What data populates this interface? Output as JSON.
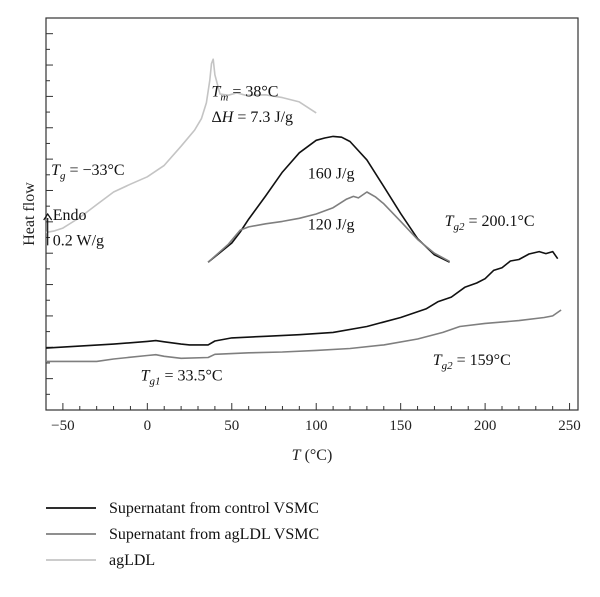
{
  "chart_data": {
    "type": "line",
    "title": "",
    "xlabel": "T (°C)",
    "ylabel": "Heat flow",
    "xlim": [
      -60,
      255
    ],
    "ylim": [
      0,
      100
    ],
    "x_ticks": [
      -50,
      0,
      50,
      100,
      150,
      200,
      250
    ],
    "grid": false,
    "legend_position": "bottom-left-outside",
    "series": [
      {
        "name": "Supernatant from control VSMC",
        "color": "#111111",
        "points": [
          [
            -60,
            15.8
          ],
          [
            -40,
            16.3
          ],
          [
            -20,
            16.8
          ],
          [
            0,
            17.5
          ],
          [
            5,
            17.7
          ],
          [
            10,
            17.4
          ],
          [
            20,
            16.8
          ],
          [
            25,
            16.6
          ],
          [
            36,
            16.6
          ],
          [
            40,
            17.6
          ],
          [
            50,
            18.4
          ],
          [
            70,
            18.8
          ],
          [
            90,
            19.2
          ],
          [
            110,
            19.8
          ],
          [
            130,
            21.3
          ],
          [
            150,
            23.6
          ],
          [
            165,
            25.8
          ],
          [
            172,
            27.6
          ],
          [
            180,
            28.8
          ],
          [
            188,
            31.3
          ],
          [
            195,
            32.4
          ],
          [
            200,
            33.5
          ],
          [
            205,
            35.6
          ],
          [
            210,
            36.3
          ],
          [
            215,
            38.0
          ],
          [
            220,
            38.4
          ],
          [
            226,
            39.8
          ],
          [
            232,
            40.4
          ],
          [
            236,
            39.9
          ],
          [
            240,
            40.4
          ],
          [
            243,
            38.6
          ]
        ]
      },
      {
        "name": "Supernatant from agLDL VSMC",
        "color": "#7f7f7f",
        "points": [
          [
            -60,
            12.4
          ],
          [
            -30,
            12.4
          ],
          [
            -20,
            13.0
          ],
          [
            0,
            13.9
          ],
          [
            5,
            14.1
          ],
          [
            10,
            13.7
          ],
          [
            20,
            13.2
          ],
          [
            36,
            13.4
          ],
          [
            40,
            14.2
          ],
          [
            60,
            14.6
          ],
          [
            80,
            14.8
          ],
          [
            100,
            15.2
          ],
          [
            120,
            15.7
          ],
          [
            140,
            16.6
          ],
          [
            160,
            18.1
          ],
          [
            175,
            19.8
          ],
          [
            185,
            21.3
          ],
          [
            200,
            22.1
          ],
          [
            220,
            22.8
          ],
          [
            235,
            23.6
          ],
          [
            240,
            24.0
          ],
          [
            245,
            25.5
          ]
        ]
      },
      {
        "name": "agLDL",
        "color": "#c4c4c4",
        "points": [
          [
            -60,
            45.3
          ],
          [
            -55,
            45.7
          ],
          [
            -50,
            46.4
          ],
          [
            -40,
            49.1
          ],
          [
            -30,
            52.4
          ],
          [
            -20,
            55.6
          ],
          [
            -10,
            57.6
          ],
          [
            0,
            59.5
          ],
          [
            10,
            62.4
          ],
          [
            20,
            67.3
          ],
          [
            28,
            71.4
          ],
          [
            32,
            74.3
          ],
          [
            35,
            78.4
          ],
          [
            37,
            84.1
          ],
          [
            38,
            88.4
          ],
          [
            39,
            89.5
          ],
          [
            40,
            85.5
          ],
          [
            43,
            80.6
          ],
          [
            48,
            80.3
          ],
          [
            53,
            80.9
          ],
          [
            58,
            80.3
          ],
          [
            70,
            80.4
          ],
          [
            80,
            79.7
          ],
          [
            90,
            78.6
          ],
          [
            100,
            75.8
          ]
        ]
      },
      {
        "name": "",
        "color": "#111111",
        "points": [
          [
            36,
            37.7
          ],
          [
            42,
            39.8
          ],
          [
            50,
            42.6
          ],
          [
            55,
            45.4
          ],
          [
            60,
            48.7
          ],
          [
            70,
            54.6
          ],
          [
            80,
            60.7
          ],
          [
            90,
            65.6
          ],
          [
            100,
            68.8
          ],
          [
            105,
            69.4
          ],
          [
            110,
            69.8
          ],
          [
            115,
            69.6
          ],
          [
            120,
            68.5
          ],
          [
            130,
            63.8
          ],
          [
            140,
            57.0
          ],
          [
            150,
            50.1
          ],
          [
            160,
            43.7
          ],
          [
            170,
            39.6
          ],
          [
            179,
            37.7
          ]
        ]
      },
      {
        "name": "",
        "color": "#7f7f7f",
        "points": [
          [
            36,
            37.7
          ],
          [
            42,
            40.0
          ],
          [
            48,
            42.3
          ],
          [
            55,
            45.9
          ],
          [
            60,
            46.7
          ],
          [
            70,
            47.5
          ],
          [
            80,
            48.1
          ],
          [
            90,
            48.9
          ],
          [
            100,
            50.0
          ],
          [
            110,
            51.6
          ],
          [
            118,
            53.8
          ],
          [
            122,
            54.5
          ],
          [
            125,
            54.1
          ],
          [
            130,
            55.6
          ],
          [
            135,
            54.4
          ],
          [
            140,
            52.6
          ],
          [
            150,
            48.1
          ],
          [
            160,
            43.5
          ],
          [
            170,
            40.0
          ],
          [
            179,
            37.9
          ]
        ]
      }
    ],
    "annotations": [
      {
        "id": "tm",
        "x": 38,
        "y": 80,
        "parts": [
          [
            "T",
            "i"
          ],
          [
            "m",
            "sub"
          ],
          [
            " = 38°C",
            ""
          ]
        ]
      },
      {
        "id": "dh",
        "x": 38,
        "y": 73.5,
        "parts": [
          [
            "Δ",
            ""
          ],
          [
            "H",
            "i"
          ],
          [
            " = 7.3 J/g",
            ""
          ]
        ]
      },
      {
        "id": "tg",
        "x": -57,
        "y": 60,
        "parts": [
          [
            "T",
            "i"
          ],
          [
            "g",
            "sub"
          ],
          [
            " = −33°C",
            ""
          ]
        ]
      },
      {
        "id": "e160",
        "x": 95,
        "y": 59,
        "parts": [
          [
            "160 J/g",
            ""
          ]
        ]
      },
      {
        "id": "e120",
        "x": 95,
        "y": 46,
        "parts": [
          [
            "120 J/g",
            ""
          ]
        ]
      },
      {
        "id": "endo",
        "x": -56,
        "y": 48.5,
        "parts": [
          [
            "Endo",
            ""
          ]
        ]
      },
      {
        "id": "scale",
        "x": -56,
        "y": 42,
        "parts": [
          [
            "0.2 W/g",
            ""
          ]
        ]
      },
      {
        "id": "tg2a",
        "x": 176,
        "y": 47,
        "parts": [
          [
            "T",
            "i"
          ],
          [
            "g2",
            "sub"
          ],
          [
            " = 200.1°C",
            ""
          ]
        ]
      },
      {
        "id": "tg1",
        "x": -4,
        "y": 7.5,
        "parts": [
          [
            "T",
            "i"
          ],
          [
            "g1",
            "sub"
          ],
          [
            " = 33.5°C",
            ""
          ]
        ]
      },
      {
        "id": "tg2b",
        "x": 169,
        "y": 11.5,
        "parts": [
          [
            "T",
            "i"
          ],
          [
            "g2",
            "sub"
          ],
          [
            " = 159°C",
            ""
          ]
        ]
      }
    ],
    "endo_arrow": {
      "x": -59,
      "y_from": 42,
      "y_to": 50
    }
  }
}
